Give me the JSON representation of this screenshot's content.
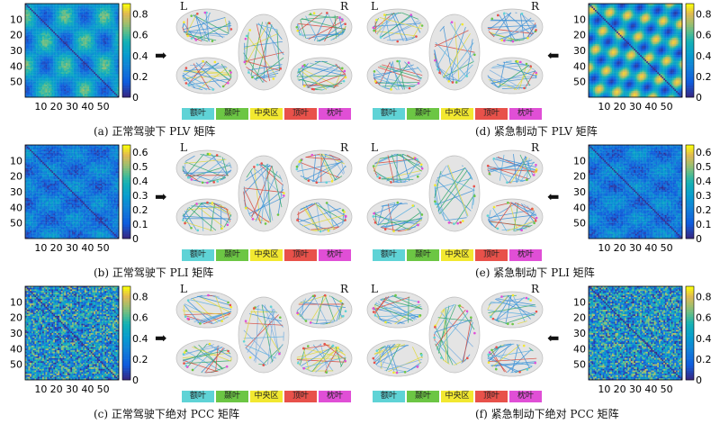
{
  "panels": [
    {
      "id": "a",
      "caption": "(a) 正常驾驶下 PLV 矩阵",
      "side": "left",
      "colorbar_ticks": [
        "0.8",
        "0.6",
        "0.4",
        "0.2",
        "0"
      ],
      "cmax": 0.9
    },
    {
      "id": "d",
      "caption": "(d) 紧急制动下 PLV 矩阵",
      "side": "right",
      "colorbar_ticks": [
        "0.8",
        "0.6",
        "0.4",
        "0.2",
        "0"
      ],
      "cmax": 0.9
    },
    {
      "id": "b",
      "caption": "(b) 正常驾驶下 PLI 矩阵",
      "side": "left",
      "colorbar_ticks": [
        "0.6",
        "0.5",
        "0.4",
        "0.3",
        "0.2",
        "0.1",
        "0"
      ],
      "cmax": 0.65
    },
    {
      "id": "e",
      "caption": "(e) 紧急制动下 PLI 矩阵",
      "side": "right",
      "colorbar_ticks": [
        "0.6",
        "0.5",
        "0.4",
        "0.3",
        "0.2",
        "0.1",
        "0"
      ],
      "cmax": 0.65
    },
    {
      "id": "c",
      "caption": "(c) 正常驾驶下绝对 PCC 矩阵",
      "side": "left",
      "colorbar_ticks": [
        "0.8",
        "0.6",
        "0.4",
        "0.2",
        "0"
      ],
      "cmax": 0.9
    },
    {
      "id": "f",
      "caption": "(f) 紧急制动下绝对 PCC 矩阵",
      "side": "right",
      "colorbar_ticks": [
        "0.8",
        "0.6",
        "0.4",
        "0.2",
        "0"
      ],
      "cmax": 0.9
    }
  ],
  "matrix_axis_ticks": {
    "y": [
      "10",
      "20",
      "30",
      "40",
      "50"
    ],
    "x": [
      "10",
      "20",
      "30",
      "40",
      "50"
    ]
  },
  "hemisphere_labels": {
    "left": "L",
    "right": "R"
  },
  "regions": [
    {
      "label": "额叶",
      "color": "#5fd3d6"
    },
    {
      "label": "颞叶",
      "color": "#6cc644"
    },
    {
      "label": "中央区",
      "color": "#f2e830"
    },
    {
      "label": "顶叶",
      "color": "#e8514a"
    },
    {
      "label": "枕叶",
      "color": "#e04fd6"
    }
  ],
  "arrow_left": "➡",
  "arrow_right": "⬅"
}
